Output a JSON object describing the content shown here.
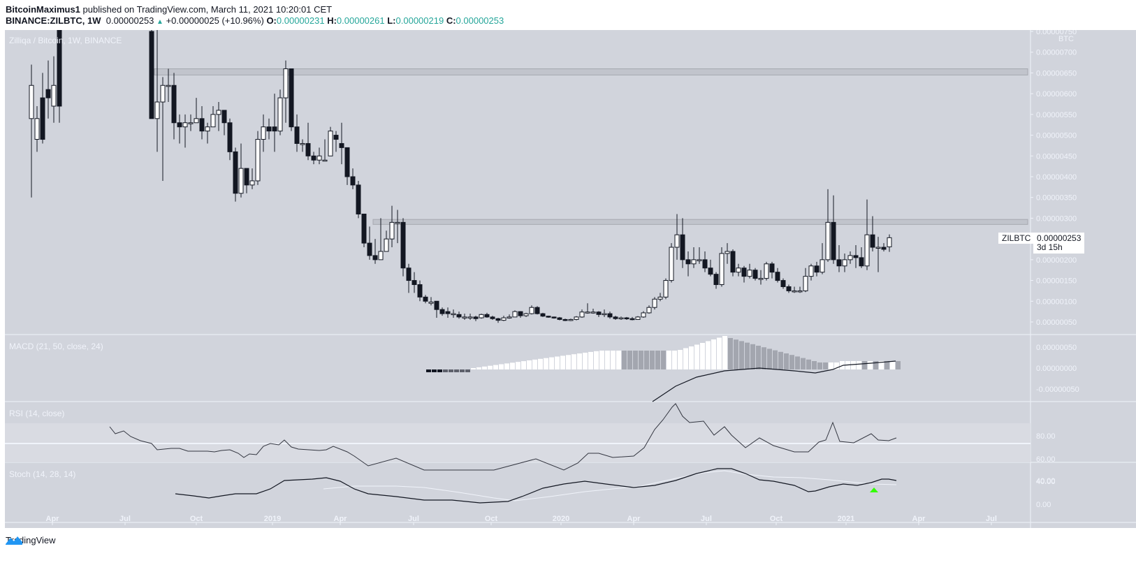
{
  "header": {
    "author": "BitcoinMaximus1",
    "published": "published on TradingView.com, March 11, 2021 10:20:01 CET",
    "symbol": "BINANCE:ZILBTC, 1W",
    "last": "0.00000253",
    "change": "+0.00000025 (+10.96%)",
    "o_label": "O:",
    "o": "0.00000231",
    "h_label": "H:",
    "h": "0.00000261",
    "l_label": "L:",
    "l": "0.00000219",
    "c_label": "C:",
    "c": "0.00000253"
  },
  "pane_titles": {
    "price": "Zilliqa / Bitcoin, 1W, BINANCE",
    "macd": "MACD (21, 50, close, 24)",
    "rsi": "RSI (14, close)",
    "stoch": "Stoch (14, 28, 14)"
  },
  "price_tag": {
    "symbol": "ZILBTC",
    "value": "0.00000253",
    "countdown": "3d 15h"
  },
  "axis_currency": "BTC",
  "footer": {
    "brand": "TradingView"
  },
  "colors": {
    "bg": "#d1d4dc",
    "up": "#ffffff",
    "down": "#131722",
    "zone": "#b2b5be",
    "arrow": "#33ff00"
  },
  "chart_data": [
    {
      "type": "candlestick",
      "title": "Zilliqa / Bitcoin, 1W, BINANCE",
      "ylabel": "BTC",
      "ylim": [
        2e-07,
        7.5e-06
      ],
      "yticks": [
        "0.00000050",
        "0.00000100",
        "0.00000150",
        "0.00000200",
        "0.00000250",
        "0.00000300",
        "0.00000350",
        "0.00000400",
        "0.00000450",
        "0.00000500",
        "0.00000550",
        "0.00000600",
        "0.00000650",
        "0.00000700",
        "0.00000750"
      ],
      "xticks": [
        "Apr",
        "Jul",
        "Oct",
        "2019",
        "Apr",
        "Jul",
        "Oct",
        "2020",
        "Apr",
        "Jul",
        "Oct",
        "2021",
        "Apr",
        "Jul"
      ],
      "resistance_zones": [
        [
          6.45e-06,
          6.6e-06
        ],
        [
          2.85e-06,
          2.97e-06
        ]
      ],
      "last_close": 2.53e-06
    },
    {
      "type": "bar+line",
      "title": "MACD (21, 50, close, 24)",
      "yticks": [
        "0.00000050",
        "0.00000000",
        "-0.00000050"
      ]
    },
    {
      "type": "line",
      "title": "RSI (14, close)",
      "yticks": [
        "80.00",
        "60.00",
        "40.00"
      ],
      "bands": [
        30,
        70
      ]
    },
    {
      "type": "line",
      "title": "Stoch (14, 28, 14)",
      "yticks": [
        "40.00",
        "0.00"
      ]
    }
  ]
}
